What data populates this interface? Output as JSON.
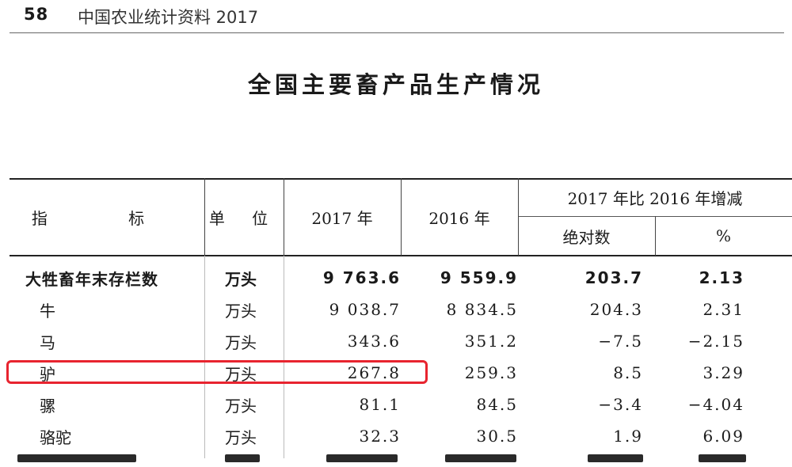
{
  "header": {
    "page_number": "58",
    "book_title": "中国农业统计资料 2017"
  },
  "title": "全国主要畜产品生产情况",
  "table": {
    "columns": {
      "indicator": "指 标",
      "unit": "单 位",
      "y2017": "2017 年",
      "y2016": "2016 年",
      "change_group": "2017 年比 2016 年增减",
      "absolute": "绝对数",
      "percent": "%"
    },
    "rows": [
      {
        "name": "大牲畜年末存栏数",
        "unit": "万头",
        "y2017": "9 763.6",
        "y2016": "9 559.9",
        "absolute": "203.7",
        "percent": "2.13"
      },
      {
        "name": "牛",
        "unit": "万头",
        "y2017": "9 038.7",
        "y2016": "8 834.5",
        "absolute": "204.3",
        "percent": "2.31"
      },
      {
        "name": "马",
        "unit": "万头",
        "y2017": "343.6",
        "y2016": "351.2",
        "absolute": "−7.5",
        "percent": "−2.15"
      },
      {
        "name": "驴",
        "unit": "万头",
        "y2017": "267.8",
        "y2016": "259.3",
        "absolute": "8.5",
        "percent": "3.29"
      },
      {
        "name": "骡",
        "unit": "万头",
        "y2017": "81.1",
        "y2016": "84.5",
        "absolute": "−3.4",
        "percent": "−4.04"
      },
      {
        "name": "骆驼",
        "unit": "万头",
        "y2017": "32.3",
        "y2016": "30.5",
        "absolute": "1.9",
        "percent": "6.09"
      }
    ]
  },
  "highlight": {
    "row_index": 3,
    "color": "#e8242f"
  }
}
